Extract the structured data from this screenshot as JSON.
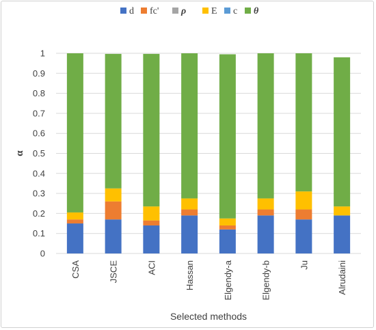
{
  "chart_data": {
    "type": "bar",
    "stacked": true,
    "categories": [
      "CSA",
      "JSCE",
      "ACI",
      "Hassan",
      "Elgendy-a",
      "Elgendy-b",
      "Ju",
      "Alrudaini"
    ],
    "series": [
      {
        "name": "d",
        "color": "#4472C4",
        "values": [
          0.15,
          0.17,
          0.14,
          0.19,
          0.12,
          0.19,
          0.17,
          0.19
        ]
      },
      {
        "name": "fc'",
        "color": "#ED7D31",
        "values": [
          0.02,
          0.09,
          0.025,
          0.03,
          0.02,
          0.03,
          0.05,
          0.0
        ]
      },
      {
        "name": "ρ",
        "color": "#A5A5A5",
        "values": [
          0.0,
          0.0,
          0.0,
          0.0,
          0.0,
          0.0,
          0.0,
          0.0
        ]
      },
      {
        "name": "E",
        "color": "#FFC000",
        "values": [
          0.035,
          0.065,
          0.07,
          0.055,
          0.035,
          0.055,
          0.09,
          0.045
        ]
      },
      {
        "name": "c",
        "color": "#5B9BD5",
        "values": [
          0.0,
          0.0,
          0.0,
          0.0,
          0.0,
          0.0,
          0.0,
          0.0
        ]
      },
      {
        "name": "θ",
        "color": "#70AD47",
        "values": [
          0.795,
          0.672,
          0.762,
          0.725,
          0.82,
          0.725,
          0.69,
          0.745
        ]
      }
    ],
    "ylabel": "α",
    "xlabel": "Selected methods",
    "ylim": [
      0,
      1
    ],
    "yticks": [
      "0",
      "0.1",
      "0.2",
      "0.3",
      "0.4",
      "0.5",
      "0.6",
      "0.7",
      "0.8",
      "0.9",
      "1"
    ],
    "grid": true,
    "legend_position": "top"
  }
}
